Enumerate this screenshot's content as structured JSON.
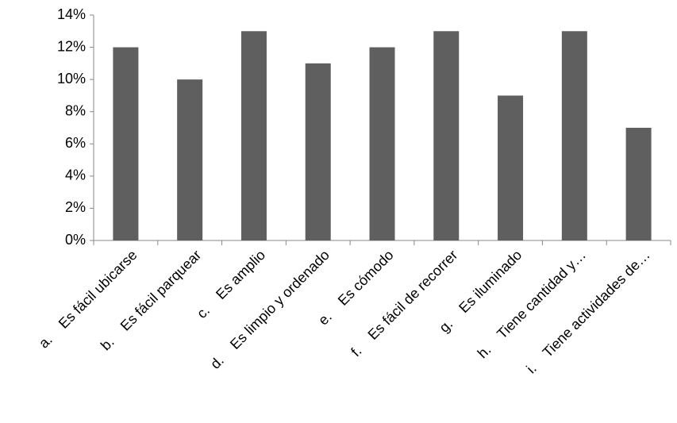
{
  "chart_data": {
    "type": "bar",
    "categories": [
      "a.    Es fácil ubicarse",
      "b.    Es fácil parquear",
      "c.    Es amplio",
      "d.    Es limpio y ordenado",
      "e.    Es cómodo",
      "f.    Es fácil de recorrer",
      "g.    Es iluminado",
      "h.    Tiene cantidad y…",
      "i.    Tiene actividades de…"
    ],
    "values": [
      12,
      10,
      13,
      11,
      12,
      13,
      9,
      13,
      7
    ],
    "color": "#5f5f5f",
    "ylim": [
      0,
      14
    ],
    "yticks": [
      {
        "value": 0,
        "label": "0%"
      },
      {
        "value": 2,
        "label": "2%"
      },
      {
        "value": 4,
        "label": "4%"
      },
      {
        "value": 6,
        "label": "6%"
      },
      {
        "value": 8,
        "label": "8%"
      },
      {
        "value": 10,
        "label": "10%"
      },
      {
        "value": 12,
        "label": "12%"
      },
      {
        "value": 14,
        "label": "14%"
      }
    ],
    "grid": false
  }
}
